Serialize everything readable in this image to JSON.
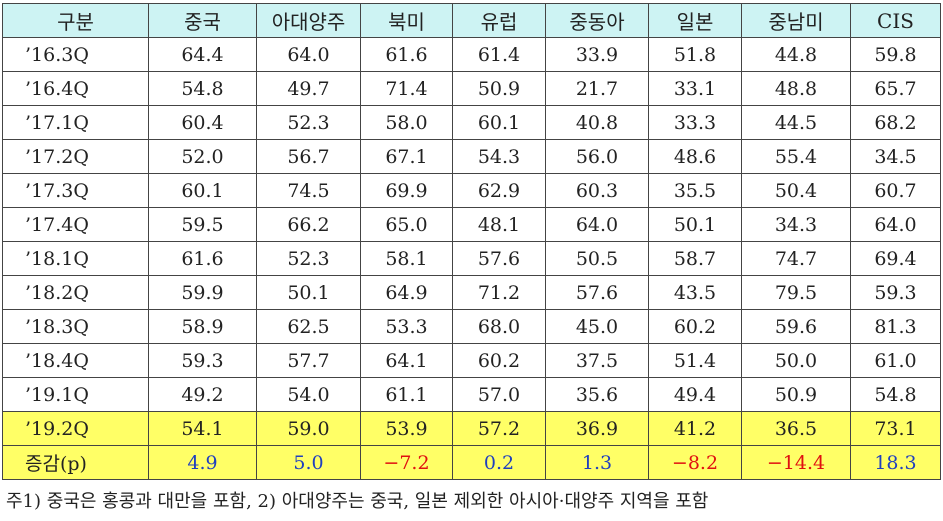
{
  "table": {
    "header": [
      "구분",
      "중국",
      "아대양주",
      "북미",
      "유럽",
      "중동아",
      "일본",
      "중남미",
      "CIS"
    ],
    "rows": [
      [
        "’16.3Q",
        "64.4",
        "64.0",
        "61.6",
        "61.4",
        "33.9",
        "51.8",
        "44.8",
        "59.8"
      ],
      [
        "’16.4Q",
        "54.8",
        "49.7",
        "71.4",
        "50.9",
        "21.7",
        "33.1",
        "48.8",
        "65.7"
      ],
      [
        "’17.1Q",
        "60.4",
        "52.3",
        "58.0",
        "60.1",
        "40.8",
        "33.3",
        "44.5",
        "68.2"
      ],
      [
        "’17.2Q",
        "52.0",
        "56.7",
        "67.1",
        "54.3",
        "56.0",
        "48.6",
        "55.4",
        "34.5"
      ],
      [
        "’17.3Q",
        "60.1",
        "74.5",
        "69.9",
        "62.9",
        "60.3",
        "35.5",
        "50.4",
        "60.7"
      ],
      [
        "’17.4Q",
        "59.5",
        "66.2",
        "65.0",
        "48.1",
        "64.0",
        "50.1",
        "34.3",
        "64.0"
      ],
      [
        "’18.1Q",
        "61.6",
        "52.3",
        "58.1",
        "57.6",
        "50.5",
        "58.7",
        "74.7",
        "69.4"
      ],
      [
        "’18.2Q",
        "59.9",
        "50.1",
        "64.9",
        "71.2",
        "57.6",
        "43.5",
        "79.5",
        "59.3"
      ],
      [
        "’18.3Q",
        "58.9",
        "62.5",
        "53.3",
        "68.0",
        "45.0",
        "60.2",
        "59.6",
        "81.3"
      ],
      [
        "’18.4Q",
        "59.3",
        "57.7",
        "64.1",
        "60.2",
        "37.5",
        "51.4",
        "50.0",
        "61.0"
      ],
      [
        "’19.1Q",
        "49.2",
        "54.0",
        "61.1",
        "57.0",
        "35.6",
        "49.4",
        "50.9",
        "54.8"
      ],
      [
        "’19.2Q",
        "54.1",
        "59.0",
        "53.9",
        "57.2",
        "36.9",
        "41.2",
        "36.5",
        "73.1"
      ],
      [
        "증감(p)",
        "4.9",
        "5.0",
        "−7.2",
        "0.2",
        "1.3",
        "−8.2",
        "−14.4",
        "18.3"
      ]
    ],
    "note": "주1) 중국은 홍콩과 대만을 포함, 2) 아대양주는 중국, 일본 제외한 아시아·대양주 지역을 포함"
  }
}
